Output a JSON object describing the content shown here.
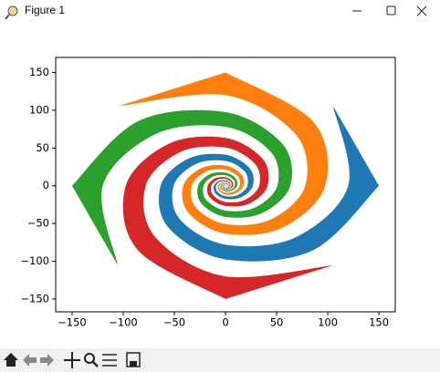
{
  "window": {
    "title": "Figure 1"
  },
  "chart_data": {
    "type": "fill",
    "xlim": [
      -166,
      166
    ],
    "ylim": [
      -167,
      170
    ],
    "xticks": [
      {
        "value": -150,
        "label": "−150"
      },
      {
        "value": -100,
        "label": "−100"
      },
      {
        "value": -50,
        "label": "−50"
      },
      0,
      50,
      100,
      150
    ],
    "yticks": [
      {
        "value": -150,
        "label": "−150"
      },
      {
        "value": -100,
        "label": "−100"
      },
      {
        "value": -50,
        "label": "−50"
      },
      0,
      50,
      100,
      150
    ],
    "series": [
      {
        "color": "#1f77b4",
        "x": [
          150,
          85.5,
          0,
          -55.6,
          -63.4,
          -36.1,
          0,
          23.5,
          26.8,
          15.3,
          0,
          -9.9,
          -11.3,
          -6.4,
          0,
          4.2,
          4.8,
          2.7,
          0,
          -1.8,
          -2.0,
          -1.6,
          -1.4,
          0,
          2.2,
          3.8,
          3.4,
          0,
          -5.2,
          -9.1,
          -7.9,
          0,
          12.2,
          21.4,
          18.8,
          0,
          -28.9,
          -50.7,
          -44.5,
          0,
          68.4,
          120,
          105.3
        ],
        "y": [
          0,
          -85.5,
          -97.5,
          -55.6,
          0,
          36.1,
          41.2,
          23.5,
          0,
          -15.3,
          -17.4,
          -9.9,
          0,
          6.4,
          7.4,
          4.2,
          0,
          -2.7,
          -3.1,
          -1.8,
          0,
          0,
          -1.4,
          -2.5,
          -2.2,
          0,
          3.4,
          5.9,
          5.2,
          0,
          -7.9,
          -13.9,
          -12.2,
          0,
          18.8,
          32.9,
          28.9,
          0,
          -44.5,
          -78.0,
          -68.4,
          0,
          105.3
        ]
      },
      {
        "color": "#ff7f0e",
        "x": [
          0,
          85.5,
          97.5,
          55.6,
          0,
          -36.1,
          -41.2,
          -23.5,
          0,
          15.3,
          17.4,
          9.9,
          0,
          -6.4,
          -7.4,
          -4.2,
          0,
          2.7,
          3.1,
          1.8,
          0,
          0,
          1.4,
          2.5,
          2.2,
          0,
          -3.4,
          -5.9,
          -5.2,
          0,
          7.9,
          13.9,
          12.2,
          0,
          -18.8,
          -32.9,
          -28.9,
          0,
          44.5,
          78.0,
          68.4,
          0,
          -105.3
        ],
        "y": [
          150,
          85.5,
          0,
          -55.6,
          -63.4,
          -36.1,
          0,
          23.5,
          26.8,
          15.3,
          0,
          -9.9,
          -11.3,
          -6.4,
          0,
          4.2,
          4.8,
          2.7,
          0,
          -1.8,
          -2.0,
          -1.6,
          -1.4,
          0,
          2.2,
          3.8,
          3.4,
          0,
          -5.2,
          -9.1,
          -7.9,
          0,
          12.2,
          21.4,
          18.8,
          0,
          -28.9,
          -50.7,
          -44.5,
          0,
          68.4,
          120,
          105.3
        ]
      },
      {
        "color": "#2ca02c",
        "x": [
          -150,
          -85.5,
          0,
          55.6,
          63.4,
          36.1,
          0,
          -23.5,
          -26.8,
          -15.3,
          0,
          9.9,
          11.3,
          6.4,
          0,
          -4.2,
          -4.8,
          -2.7,
          0,
          1.8,
          2.0,
          1.6,
          1.4,
          0,
          -2.2,
          -3.8,
          -3.4,
          0,
          5.2,
          9.1,
          7.9,
          0,
          -12.2,
          -21.4,
          -18.8,
          0,
          28.9,
          50.7,
          44.5,
          0,
          -68.4,
          -120,
          -105.3
        ],
        "y": [
          0,
          85.5,
          97.5,
          55.6,
          0,
          -36.1,
          -41.2,
          -23.5,
          0,
          15.3,
          17.4,
          9.9,
          0,
          -6.4,
          -7.4,
          -4.2,
          0,
          2.7,
          3.1,
          1.8,
          0,
          0,
          1.4,
          2.5,
          2.2,
          0,
          -3.4,
          -5.9,
          -5.2,
          0,
          7.9,
          13.9,
          12.2,
          0,
          -18.8,
          -32.9,
          -28.9,
          0,
          44.5,
          78.0,
          68.4,
          0,
          -105.3
        ]
      },
      {
        "color": "#d62728",
        "x": [
          0,
          -85.5,
          -97.5,
          -55.6,
          0,
          36.1,
          41.2,
          23.5,
          0,
          -15.3,
          -17.4,
          -9.9,
          0,
          6.4,
          7.4,
          4.2,
          0,
          -2.7,
          -3.1,
          -1.8,
          0,
          0,
          -1.4,
          -2.5,
          -2.2,
          0,
          3.4,
          5.9,
          5.2,
          0,
          -7.9,
          -13.9,
          -12.2,
          0,
          18.8,
          32.9,
          28.9,
          0,
          -44.5,
          -78.0,
          -68.4,
          0,
          105.3
        ],
        "y": [
          -150,
          -85.5,
          0,
          55.6,
          63.4,
          36.1,
          0,
          -23.5,
          -26.8,
          -15.3,
          0,
          9.9,
          11.3,
          6.4,
          0,
          -4.2,
          -4.8,
          -2.7,
          0,
          1.8,
          2.0,
          1.6,
          1.4,
          0,
          -2.2,
          -3.8,
          -3.4,
          0,
          5.2,
          9.1,
          7.9,
          0,
          -12.2,
          -21.4,
          -18.8,
          0,
          28.9,
          50.7,
          44.5,
          0,
          -68.4,
          -120,
          -105.3
        ]
      }
    ]
  }
}
